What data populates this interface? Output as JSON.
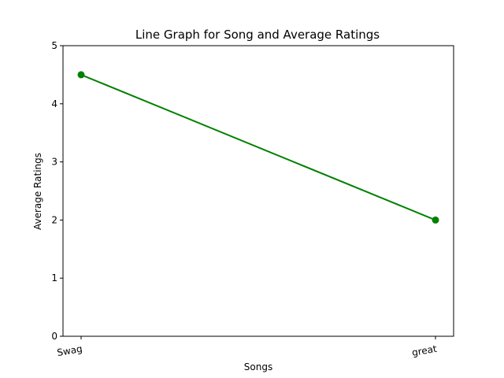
{
  "chart_data": {
    "type": "line",
    "title": "Line Graph for Song and Average Ratings",
    "xlabel": "Songs",
    "ylabel": "Average Ratings",
    "categories": [
      "Swag",
      "great"
    ],
    "series": [
      {
        "values": [
          4.5,
          2.0
        ],
        "color": "#008000",
        "marker": "circle"
      }
    ],
    "ylim": [
      0,
      5
    ],
    "yticks": [
      0,
      1,
      2,
      3,
      4,
      5
    ],
    "xtick_rotation_deg": 10,
    "grid": false,
    "legend": false
  }
}
